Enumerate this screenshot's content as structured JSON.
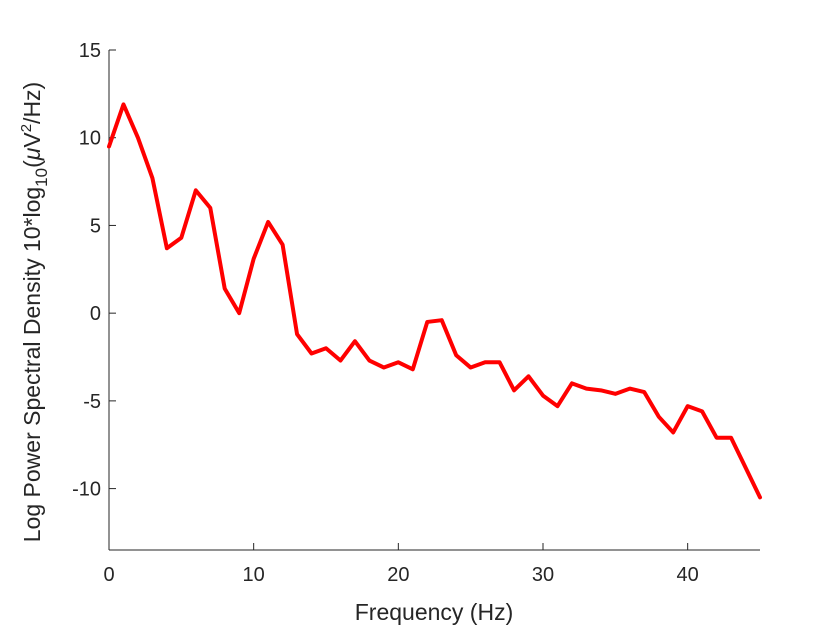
{
  "chart_data": {
    "type": "line",
    "title": "",
    "xlabel": "Frequency (Hz)",
    "ylabel": {
      "prefix": "Log Power Spectral Density 10*log",
      "log_base": "10",
      "open_paren": "(",
      "mu": "μ",
      "unit_v": "V",
      "exp": "2",
      "suffix": "/Hz)"
    },
    "xlim": [
      0,
      45
    ],
    "ylim": [
      -13.5,
      15
    ],
    "xticks": [
      0,
      10,
      20,
      30,
      40
    ],
    "yticks": [
      15,
      10,
      5,
      0,
      -5,
      -10
    ],
    "grid": false,
    "series": [
      {
        "color": "#ff0000",
        "x": [
          0,
          1,
          2,
          3,
          4,
          5,
          6,
          7,
          8,
          9,
          10,
          11,
          12,
          13,
          14,
          15,
          16,
          17,
          18,
          19,
          20,
          21,
          22,
          23,
          24,
          25,
          26,
          27,
          28,
          29,
          30,
          31,
          32,
          33,
          34,
          35,
          36,
          37,
          38,
          39,
          40,
          41,
          42,
          43,
          44,
          45
        ],
        "y": [
          9.5,
          11.9,
          10.0,
          7.7,
          3.7,
          4.3,
          7.0,
          6.0,
          1.4,
          0.0,
          3.1,
          5.2,
          3.9,
          -1.2,
          -2.3,
          -2.0,
          -2.7,
          -1.6,
          -2.7,
          -3.1,
          -2.8,
          -3.2,
          -0.5,
          -0.4,
          -2.4,
          -3.1,
          -2.8,
          -2.8,
          -4.4,
          -3.6,
          -4.7,
          -5.3,
          -4.0,
          -4.3,
          -4.4,
          -4.6,
          -4.3,
          -4.5,
          -5.9,
          -6.8,
          -5.3,
          -5.6,
          -7.1,
          -7.1,
          -8.8,
          -10.5
        ]
      }
    ]
  }
}
